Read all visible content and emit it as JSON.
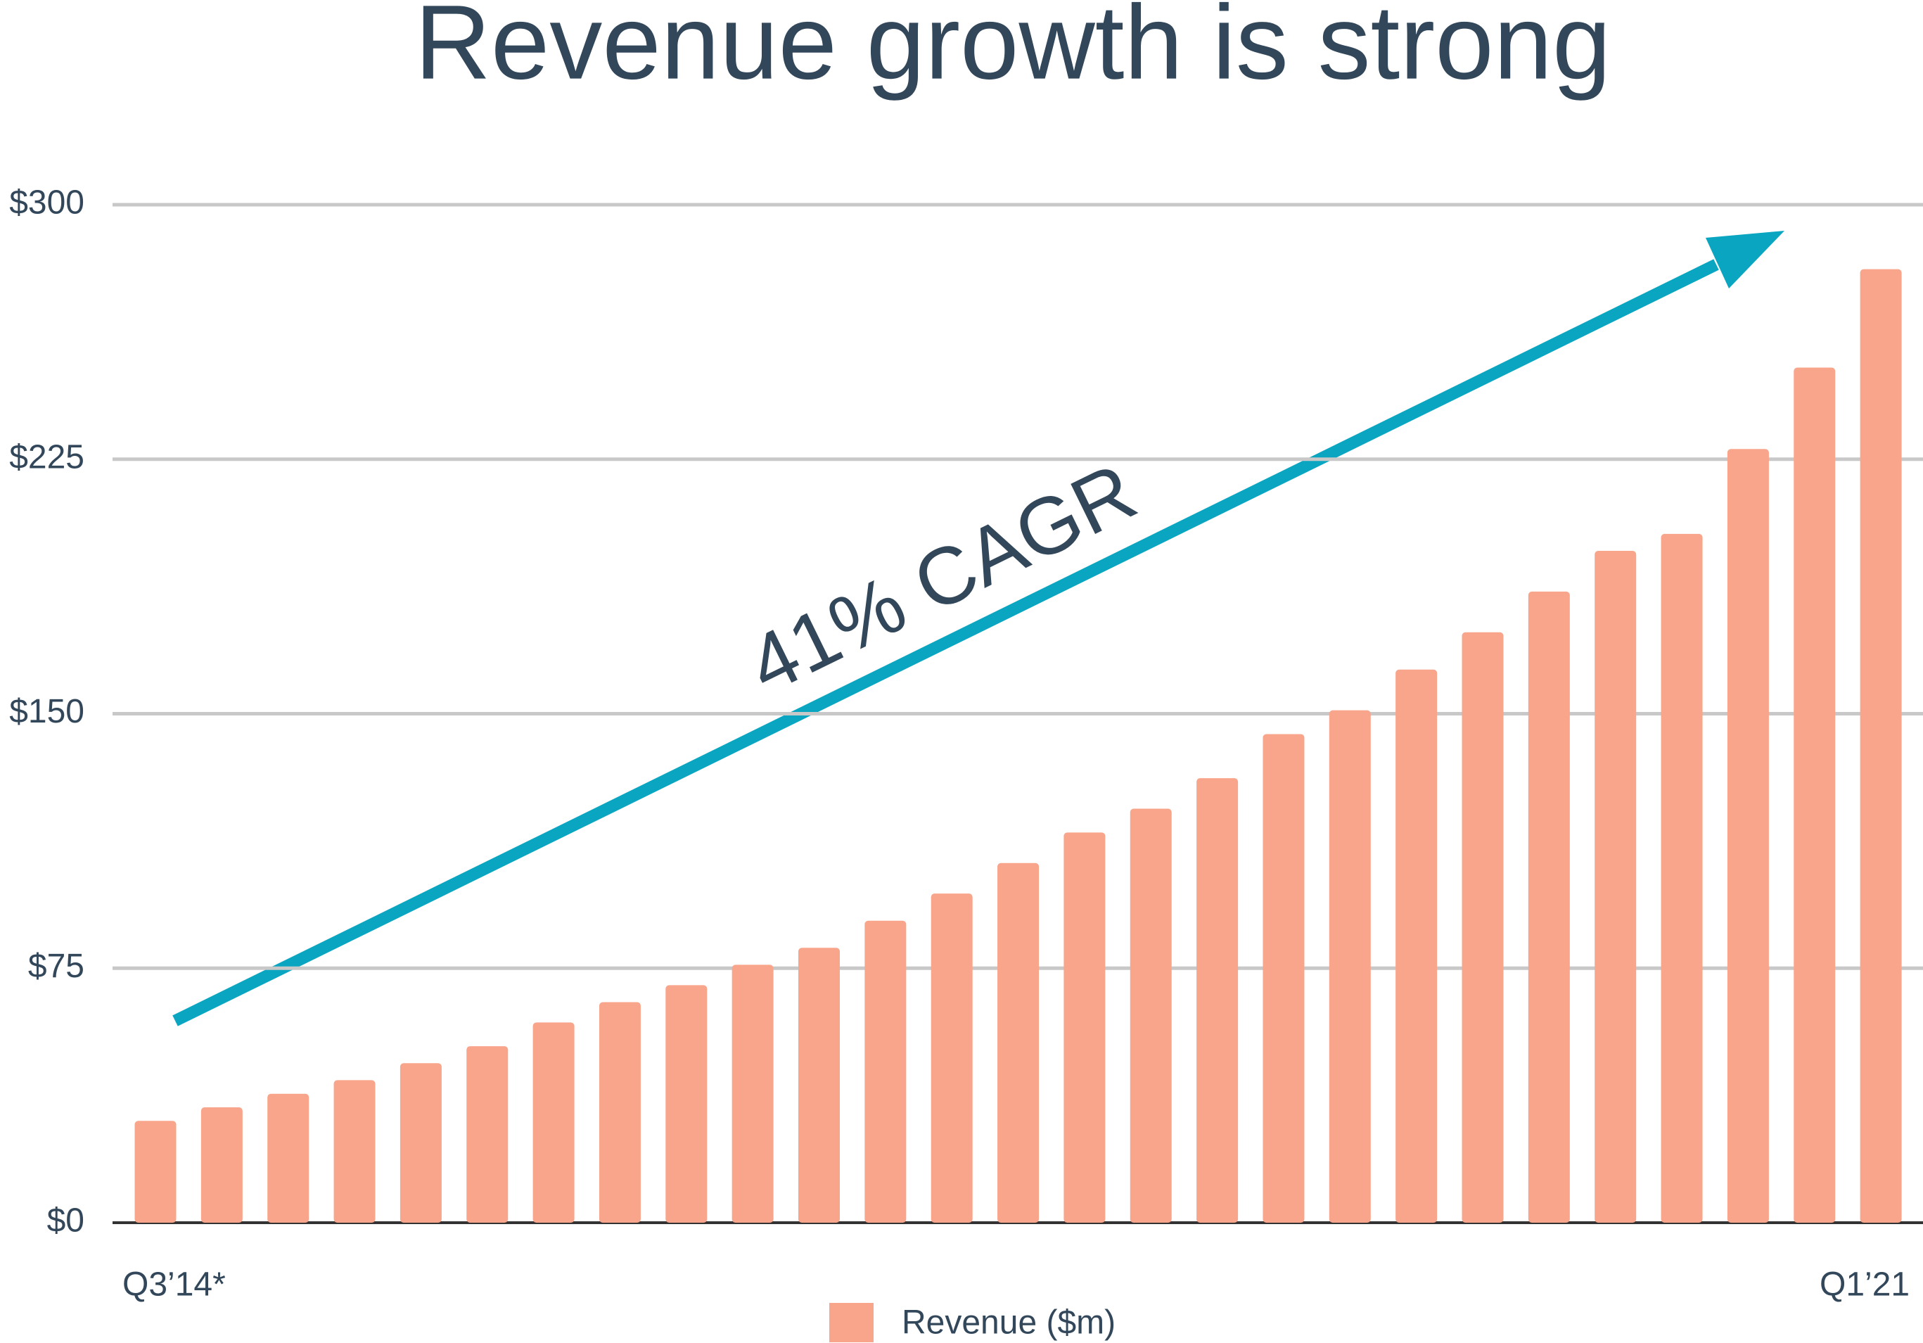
{
  "chart_data": {
    "type": "bar",
    "title": "Revenue growth is strong",
    "annotation": "41% CAGR",
    "categories": [
      "Q3’14*",
      null,
      null,
      null,
      null,
      null,
      null,
      null,
      null,
      null,
      null,
      null,
      null,
      null,
      null,
      null,
      null,
      null,
      null,
      null,
      null,
      null,
      null,
      null,
      null,
      null,
      "Q1’21"
    ],
    "series": [
      {
        "name": "Revenue ($m)",
        "color": "#f9a58b",
        "values": [
          30,
          34,
          38,
          42,
          47,
          52,
          59,
          65,
          70,
          76,
          81,
          89,
          97,
          106,
          115,
          122,
          131,
          144,
          151,
          163,
          174,
          186,
          198,
          203,
          228,
          252,
          281
        ]
      }
    ],
    "ylim": [
      0,
      300
    ],
    "yticks": [
      {
        "value": 0,
        "label": "$0"
      },
      {
        "value": 75,
        "label": "$75"
      },
      {
        "value": 150,
        "label": "$150"
      },
      {
        "value": 225,
        "label": "$225"
      },
      {
        "value": 300,
        "label": "$300"
      }
    ],
    "grid": true,
    "legend": "bottom"
  }
}
